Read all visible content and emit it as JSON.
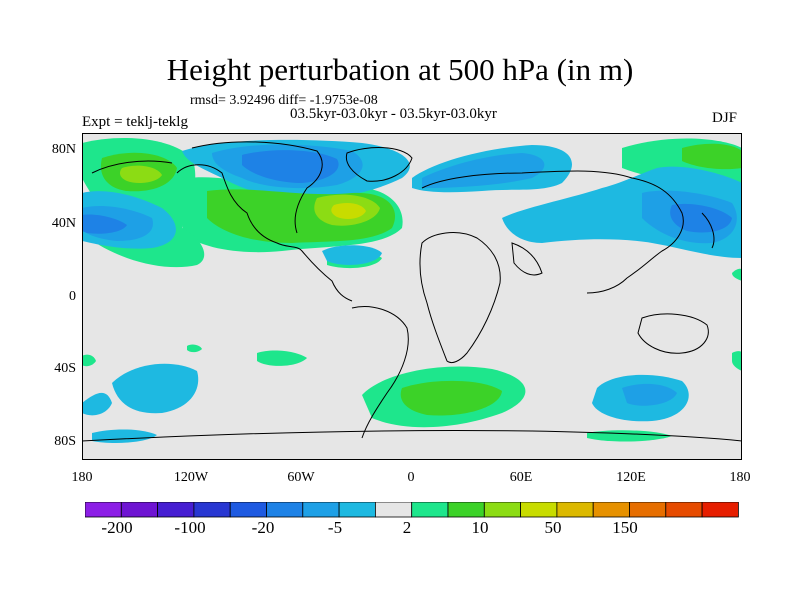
{
  "figure": {
    "title": "Height perturbation at 500 hPa (in m)",
    "stats": "rmsd= 3.92496 diff= -1.9753e-08",
    "period": "03.5kyr-03.0kyr - 03.5kyr-03.0kyr",
    "experiment": "Expt = teklj-teklg",
    "season": "DJF"
  },
  "axes": {
    "y_labels": [
      "80N",
      "40N",
      "0",
      "40S",
      "80S"
    ],
    "x_labels": [
      "180",
      "120W",
      "60W",
      "0",
      "60E",
      "120E",
      "180"
    ]
  },
  "colorbar": {
    "colors": [
      "#8c1ee6",
      "#6e14d2",
      "#461ed2",
      "#2837d2",
      "#1e5ae1",
      "#1e82e6",
      "#1ea0e6",
      "#1eb9e1",
      "#e6e6e6",
      "#1ee68c",
      "#3cd228",
      "#8cdc14",
      "#c8dc00",
      "#dcb900",
      "#e69100",
      "#e66e00",
      "#e64b00",
      "#e61e00"
    ],
    "labels": [
      "-200",
      "-100",
      "-20",
      "-5",
      "2",
      "10",
      "50",
      "150"
    ]
  }
}
